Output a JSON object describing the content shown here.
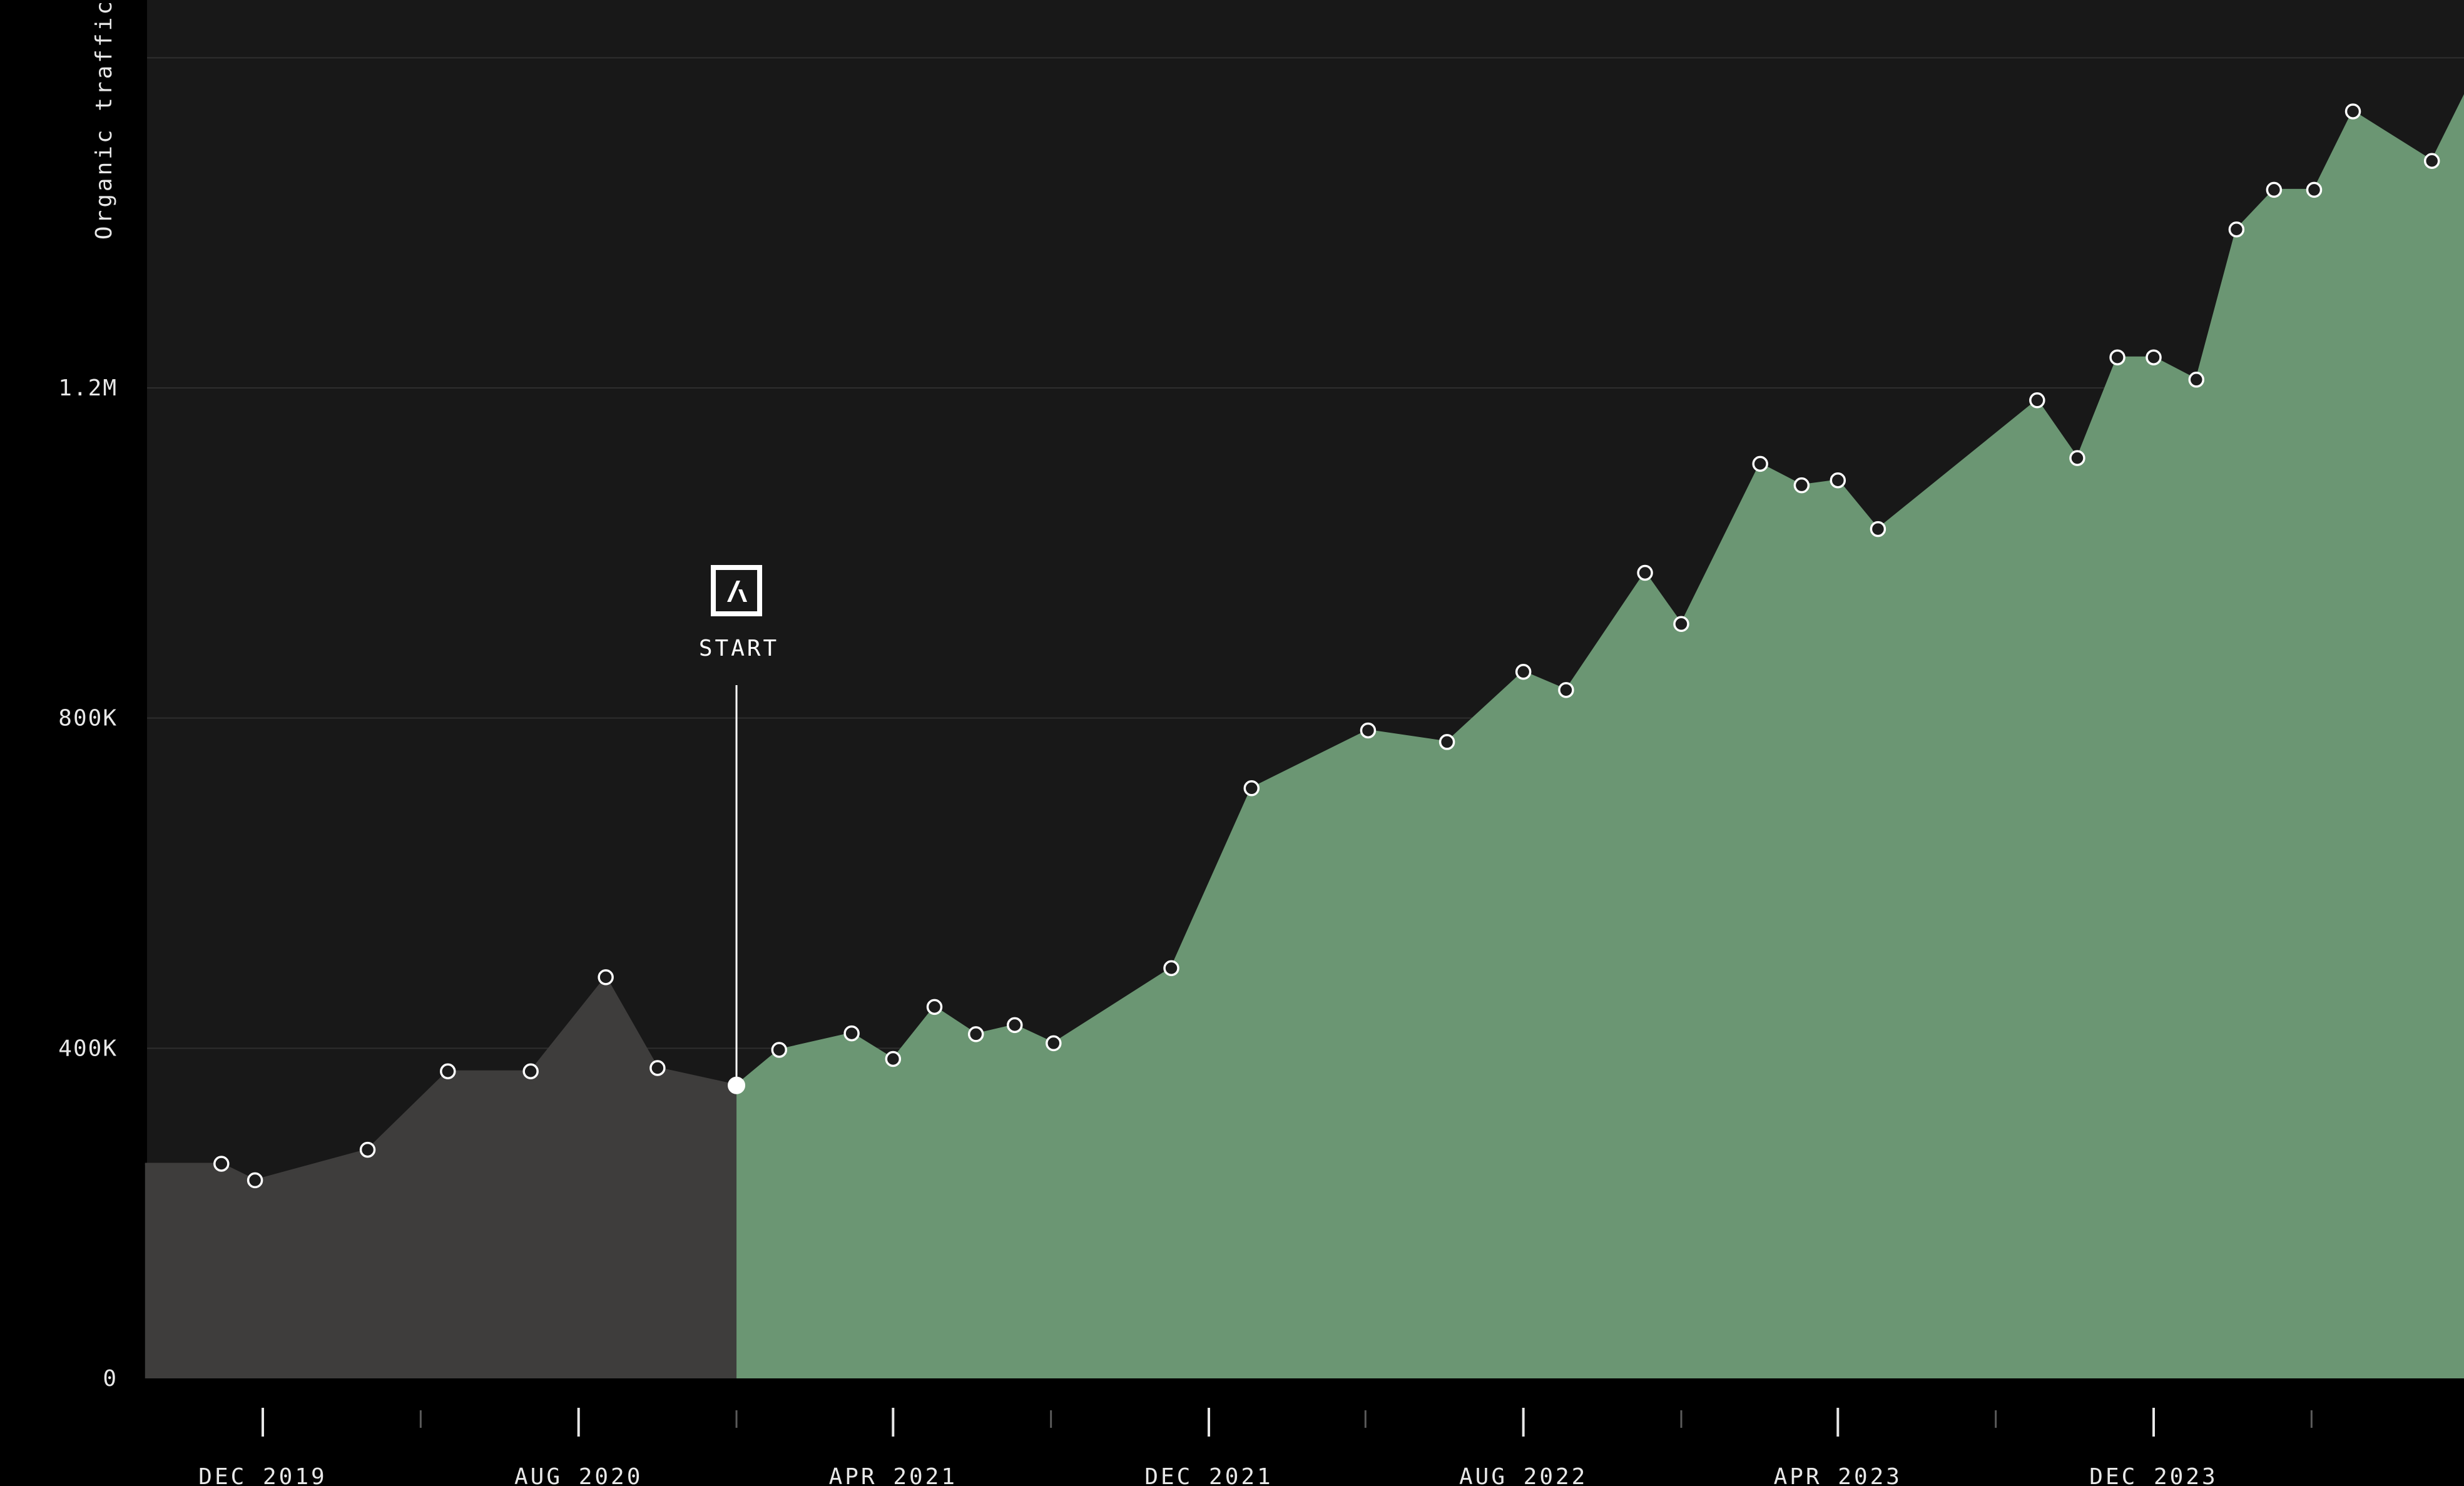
{
  "chart_data": {
    "type": "area",
    "ylabel": "Organic traffic",
    "ylim": [
      0,
      1600000
    ],
    "y_ticks": [
      {
        "value": 0,
        "label": "0"
      },
      {
        "value": 400000,
        "label": "400K"
      },
      {
        "value": 800000,
        "label": "800K"
      },
      {
        "value": 1200000,
        "label": "1.2M"
      }
    ],
    "grid": true,
    "x_ticks": [
      {
        "date": "2019-12",
        "label": "DEC 2019"
      },
      {
        "date": "2020-08",
        "label": "AUG 2020"
      },
      {
        "date": "2021-04",
        "label": "APR 2021"
      },
      {
        "date": "2021-12",
        "label": "DEC 2021"
      },
      {
        "date": "2022-08",
        "label": "AUG 2022"
      },
      {
        "date": "2023-04",
        "label": "APR 2023"
      },
      {
        "date": "2023-12",
        "label": "DEC 2023"
      }
    ],
    "x_minor_ticks": [
      "2020-04",
      "2020-12",
      "2021-08",
      "2022-04",
      "2022-12",
      "2023-08",
      "2024-04"
    ],
    "annotation": {
      "label": "START",
      "date": "2020-12-01",
      "value": 355000
    },
    "colors": {
      "before": "#3e3d3c",
      "after": "#6b9673",
      "plot_bg": "#181818",
      "page_bg": "#000000"
    },
    "series": [
      {
        "points": [
          {
            "date": "2019-09-01",
            "value": 260000,
            "marker": false
          },
          {
            "date": "2019-10-30",
            "value": 260000
          },
          {
            "date": "2019-11-25",
            "value": 240000
          },
          {
            "date": "2020-02-20",
            "value": 277000
          },
          {
            "date": "2020-04-22",
            "value": 372000
          },
          {
            "date": "2020-06-25",
            "value": 372000
          },
          {
            "date": "2020-08-22",
            "value": 486000
          },
          {
            "date": "2020-10-01",
            "value": 376000
          },
          {
            "date": "2020-12-01",
            "value": 355000,
            "highlight": true
          }
        ]
      },
      {
        "points": [
          {
            "date": "2020-12-01",
            "value": 355000,
            "marker": false
          },
          {
            "date": "2021-01-03",
            "value": 398000
          },
          {
            "date": "2021-02-28",
            "value": 418000
          },
          {
            "date": "2021-04-01",
            "value": 387000
          },
          {
            "date": "2021-05-03",
            "value": 450000
          },
          {
            "date": "2021-06-04",
            "value": 417000
          },
          {
            "date": "2021-07-04",
            "value": 428000
          },
          {
            "date": "2021-08-03",
            "value": 406000
          },
          {
            "date": "2021-11-02",
            "value": 497000
          },
          {
            "date": "2022-01-03",
            "value": 715000
          },
          {
            "date": "2022-04-03",
            "value": 785000
          },
          {
            "date": "2022-06-03",
            "value": 771000
          },
          {
            "date": "2022-08-01",
            "value": 856000
          },
          {
            "date": "2022-09-03",
            "value": 834000
          },
          {
            "date": "2022-11-03",
            "value": 976000
          },
          {
            "date": "2022-12-01",
            "value": 914000
          },
          {
            "date": "2023-01-31",
            "value": 1108000
          },
          {
            "date": "2023-03-04",
            "value": 1082000
          },
          {
            "date": "2023-04-01",
            "value": 1088000
          },
          {
            "date": "2023-05-02",
            "value": 1029000
          },
          {
            "date": "2023-09-02",
            "value": 1185000
          },
          {
            "date": "2023-10-03",
            "value": 1115000
          },
          {
            "date": "2023-11-03",
            "value": 1237000
          },
          {
            "date": "2023-12-01",
            "value": 1237000
          },
          {
            "date": "2024-01-03",
            "value": 1210000
          },
          {
            "date": "2024-02-03",
            "value": 1392000
          },
          {
            "date": "2024-03-03",
            "value": 1440000
          },
          {
            "date": "2024-04-03",
            "value": 1440000
          },
          {
            "date": "2024-05-03",
            "value": 1535000
          },
          {
            "date": "2024-07-03",
            "value": 1475000
          },
          {
            "date": "2024-08-03",
            "value": 1573000
          },
          {
            "date": "2024-09-03",
            "value": 1566000,
            "marker": false
          }
        ]
      }
    ]
  }
}
